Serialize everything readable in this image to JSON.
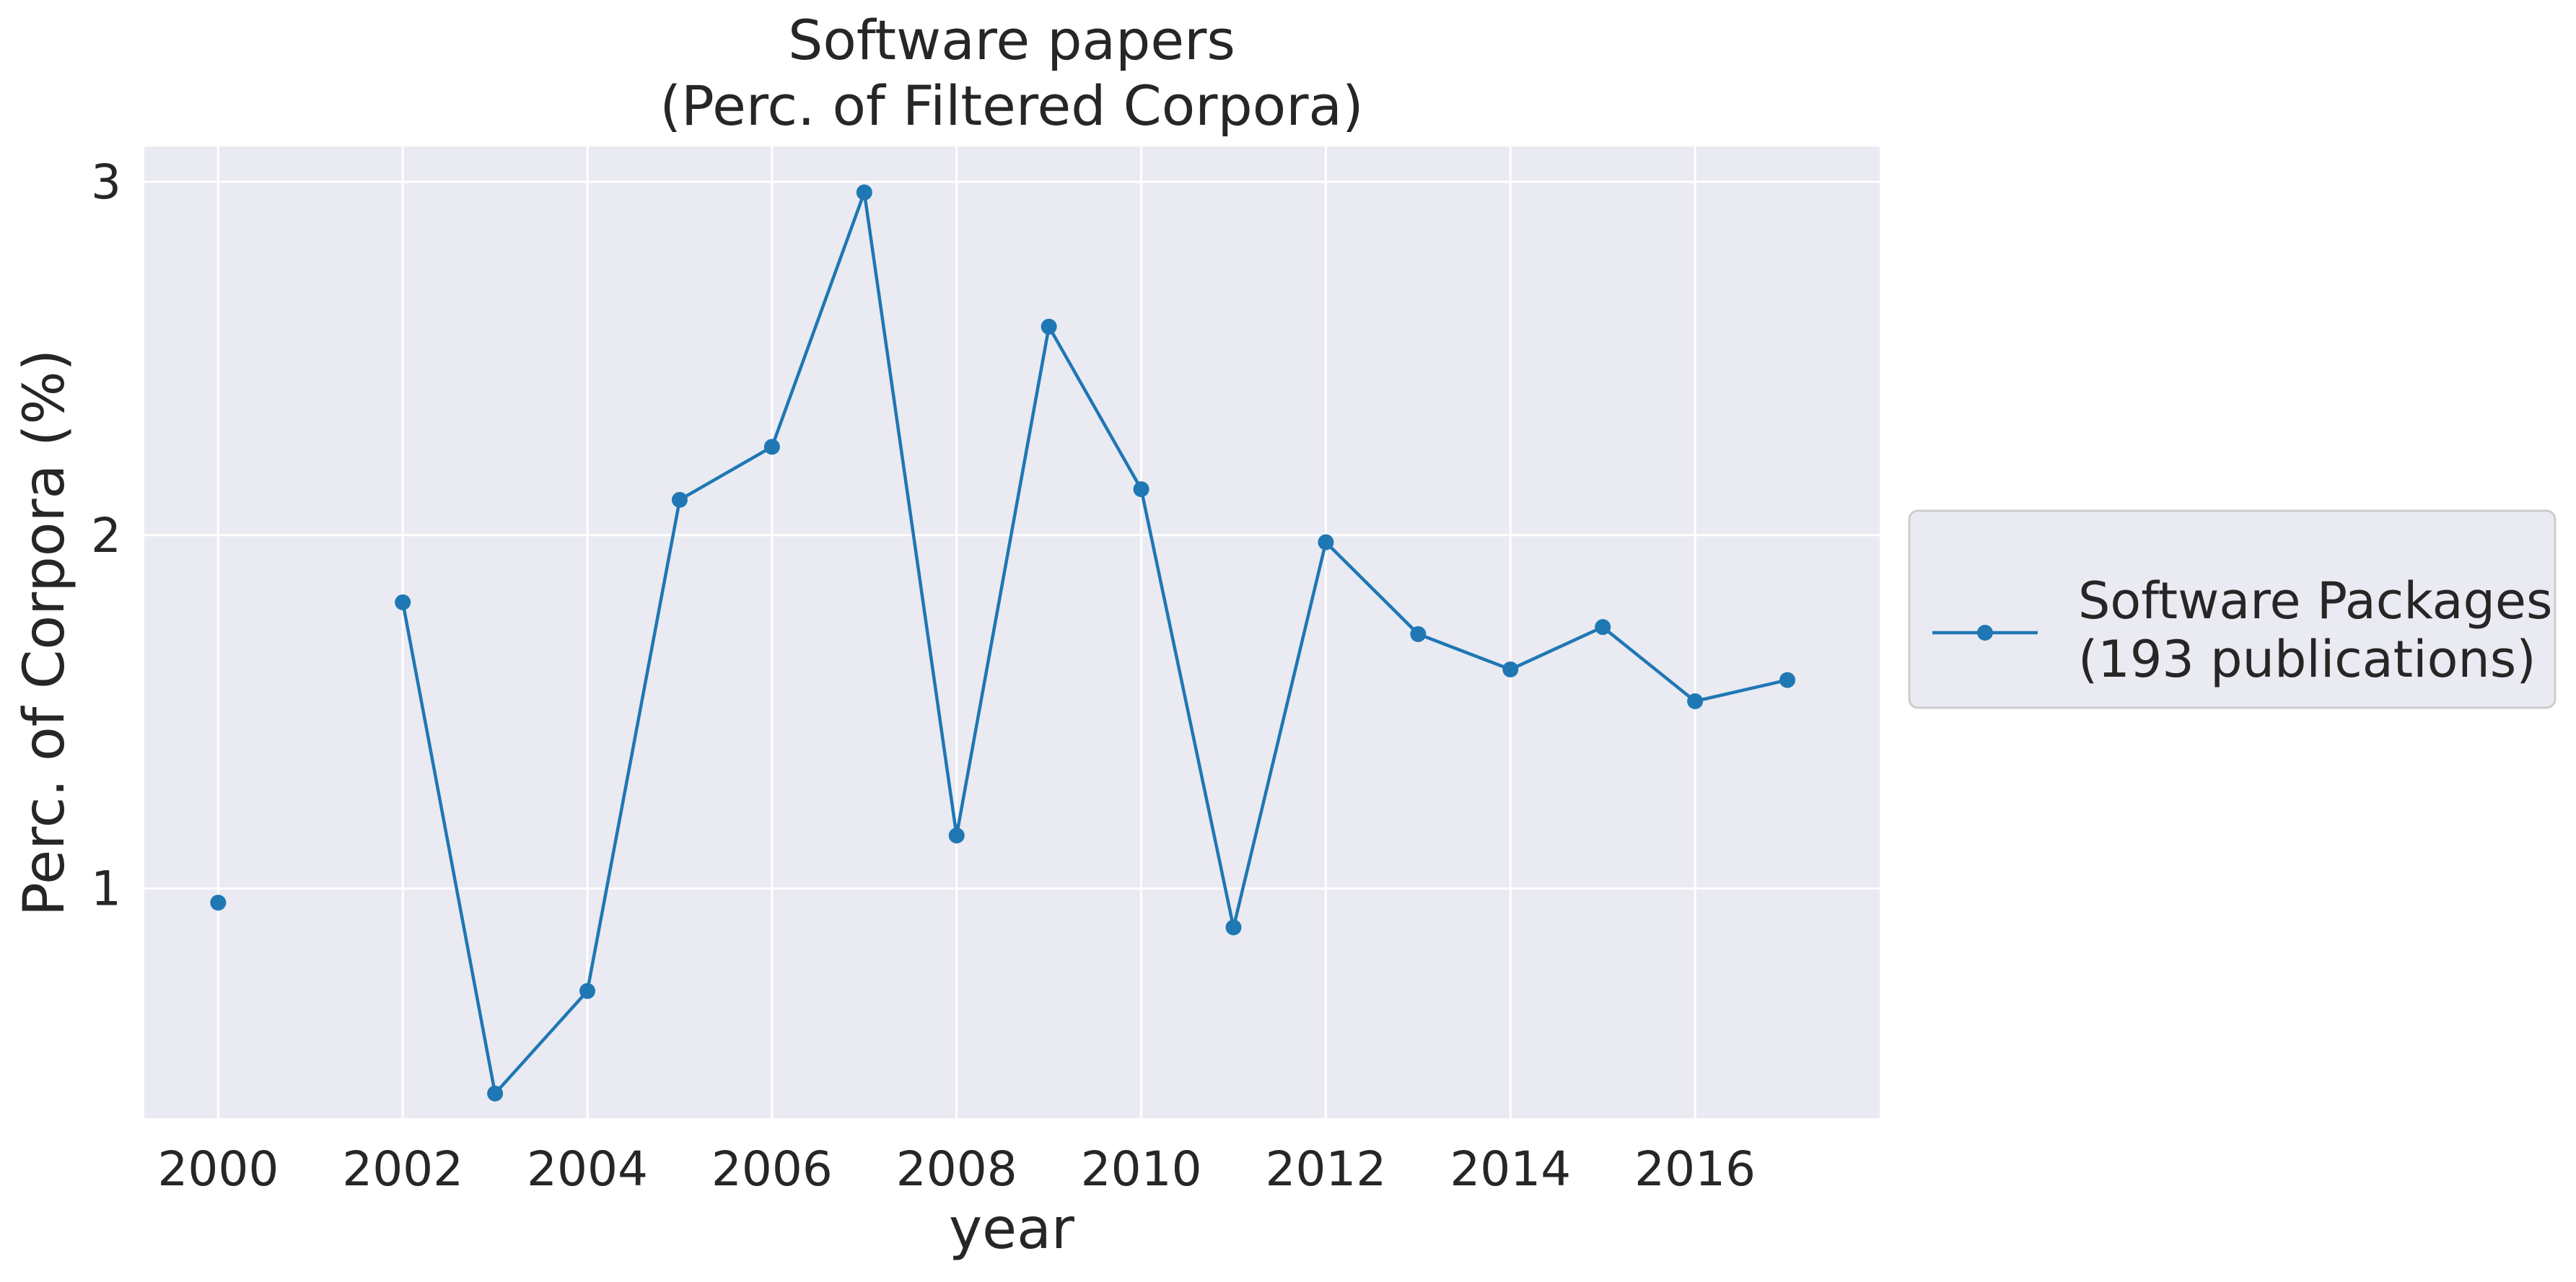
{
  "chart_data": {
    "type": "line",
    "title_lines": [
      "Software papers",
      "(Perc. of Filtered Corpora)"
    ],
    "xlabel": "year",
    "ylabel": "Perc. of Corpora (%)",
    "xlim": [
      1999.2,
      2018.0
    ],
    "ylim": [
      0.35,
      3.1
    ],
    "xticks": [
      2000,
      2002,
      2004,
      2006,
      2008,
      2010,
      2012,
      2014,
      2016
    ],
    "yticks": [
      1,
      2,
      3
    ],
    "grid": true,
    "legend_position": "right",
    "series": [
      {
        "name": "Software Packages\n(193 publications)",
        "name_lines": [
          "Software Packages",
          "(193 publications)"
        ],
        "color": "#1f77b4",
        "marker": "circle",
        "x": [
          2000,
          2001,
          2002,
          2003,
          2004,
          2005,
          2006,
          2007,
          2008,
          2009,
          2010,
          2011,
          2012,
          2013,
          2014,
          2015,
          2016,
          2017
        ],
        "y": [
          0.96,
          null,
          1.81,
          0.42,
          0.71,
          2.1,
          2.25,
          2.97,
          1.15,
          2.59,
          2.13,
          0.89,
          1.98,
          1.72,
          1.62,
          1.74,
          1.53,
          1.59
        ]
      }
    ]
  },
  "style": {
    "plot_background": "#eaeaf2",
    "grid_color": "#ffffff",
    "text_color": "#262626"
  }
}
